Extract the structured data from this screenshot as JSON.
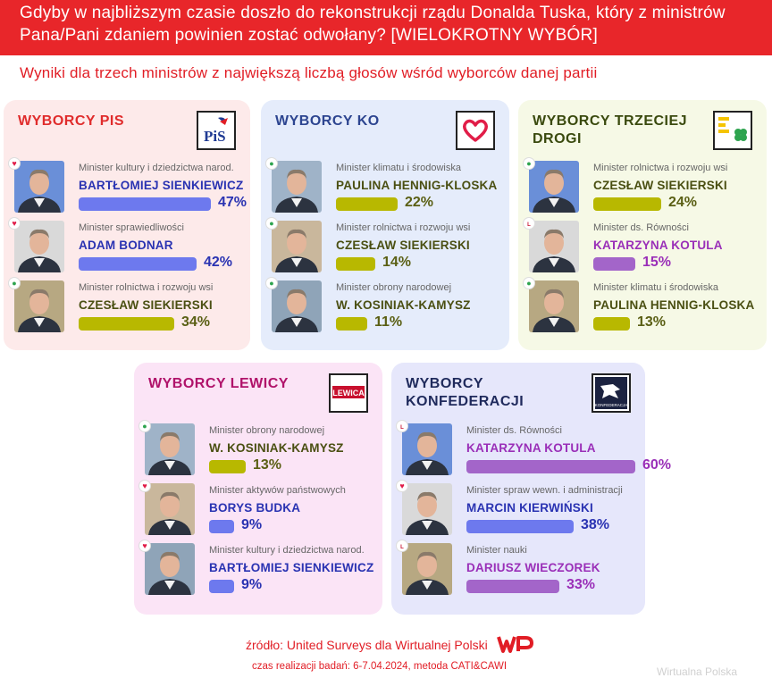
{
  "header": {
    "title": "Gdyby w najbliższym czasie doszło do rekonstrukcji rządu Donalda Tuska, który z ministrów Pana/Pani zdaniem powinien zostać odwołany? [WIELOKROTNY WYBÓR]"
  },
  "subtitle": "Wyniki dla trzech ministrów z największą liczbą głosów wśród wyborców danej partii",
  "colors": {
    "header_red": "#e8262a",
    "pis_bg": "#fdeaea",
    "pis_title": "#e02c2c",
    "ko_bg": "#e5ecfb",
    "ko_title": "#2d4590",
    "td_bg": "#f6f9e6",
    "td_title": "#3a4a0e",
    "lewica_bg": "#fbe4f6",
    "lewica_title": "#b0126a",
    "konf_bg": "#e6e7fb",
    "konf_title": "#1f2a5c",
    "bar_blue": "#6d79ee",
    "bar_olive": "#b8b800",
    "bar_purple": "#a365c9",
    "name_blue": "#2a33b2",
    "name_olive": "#4a4f12",
    "name_purple": "#9a2fb8"
  },
  "chart_data": [
    {
      "type": "bar",
      "title": "WYBORCY PIS",
      "logo": "PiS",
      "categories": [
        "BARTŁOMIEJ SIENKIEWICZ",
        "ADAM BODNAR",
        "CZESŁAW SIEKIERSKI"
      ],
      "roles": [
        "Minister kultury i dziedzictwa narod.",
        "Minister sprawiedliwości",
        "Minister rolnictwa i rozwoju wsi"
      ],
      "values": [
        47,
        42,
        34
      ],
      "labels": [
        "47%",
        "42%",
        "34%"
      ],
      "party_icons": [
        "heart-icon",
        "heart-icon",
        "clover-icon"
      ],
      "bar_colors": [
        "#6d79ee",
        "#6d79ee",
        "#b8b800"
      ]
    },
    {
      "type": "bar",
      "title": "WYBORCY KO",
      "logo": "heart",
      "categories": [
        "PAULINA HENNIG-KLOSKA",
        "CZESŁAW SIEKIERSKI",
        "W. KOSINIAK-KAMYSZ"
      ],
      "roles": [
        "Minister klimatu i środowiska",
        "Minister rolnictwa i rozwoju wsi",
        "Minister obrony narodowej"
      ],
      "values": [
        22,
        14,
        11
      ],
      "labels": [
        "22%",
        "14%",
        "11%"
      ],
      "party_icons": [
        "clover-icon",
        "clover-icon",
        "clover-icon"
      ],
      "bar_colors": [
        "#b8b800",
        "#b8b800",
        "#b8b800"
      ]
    },
    {
      "type": "bar",
      "title": "WYBORCY TRZECIEJ DROGI",
      "logo": "trzecia-droga",
      "categories": [
        "CZESŁAW SIEKIERSKI",
        "KATARZYNA KOTULA",
        "PAULINA HENNIG-KLOSKA"
      ],
      "roles": [
        "Minister rolnictwa i rozwoju wsi",
        "Minister ds. Równości",
        "Minister klimatu i środowiska"
      ],
      "values": [
        24,
        15,
        13
      ],
      "labels": [
        "24%",
        "15%",
        "13%"
      ],
      "party_icons": [
        "clover-icon",
        "lewica-icon",
        "clover-icon"
      ],
      "bar_colors": [
        "#b8b800",
        "#a365c9",
        "#b8b800"
      ]
    },
    {
      "type": "bar",
      "title": "WYBORCY LEWICY",
      "logo": "LEWICA",
      "categories": [
        "W. KOSINIAK-KAMYSZ",
        "BORYS BUDKA",
        "BARTŁOMIEJ SIENKIEWICZ"
      ],
      "roles": [
        "Minister obrony narodowej",
        "Minister aktywów państwowych",
        "Minister kultury i dziedzictwa narod."
      ],
      "values": [
        13,
        9,
        9
      ],
      "labels": [
        "13%",
        "9%",
        "9%"
      ],
      "party_icons": [
        "clover-icon",
        "heart-icon",
        "heart-icon"
      ],
      "bar_colors": [
        "#b8b800",
        "#6d79ee",
        "#6d79ee"
      ]
    },
    {
      "type": "bar",
      "title": "WYBORCY KONFEDERACJI",
      "logo": "KONFEDERACJA",
      "categories": [
        "KATARZYNA KOTULA",
        "MARCIN KIERWIŃSKI",
        "DARIUSZ WIECZOREK"
      ],
      "roles": [
        "Minister ds. Równości",
        "Minister spraw wewn. i administracji",
        "Minister nauki"
      ],
      "values": [
        60,
        38,
        33
      ],
      "labels": [
        "60%",
        "38%",
        "33%"
      ],
      "party_icons": [
        "lewica-icon",
        "heart-icon",
        "lewica-icon"
      ],
      "bar_colors": [
        "#a365c9",
        "#6d79ee",
        "#a365c9"
      ]
    }
  ],
  "footer": {
    "source": "źródło: United Surveys dla Wirtualnej Polski",
    "method": "czas realizacji badań: 6-7.04.2024, metoda CATI&CAWI",
    "logo": "WP",
    "watermark": "Wirtualna Polska"
  }
}
